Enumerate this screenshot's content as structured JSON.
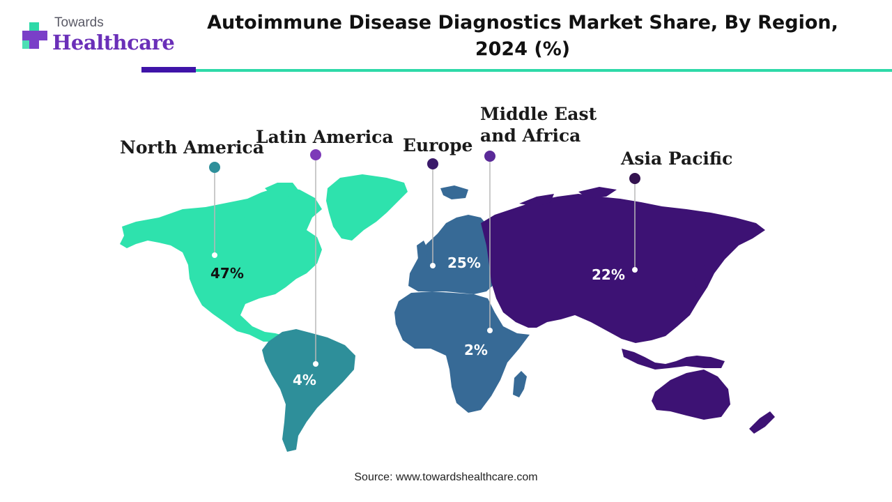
{
  "brand": {
    "line1": "Towards",
    "line2": "Healthcare"
  },
  "title": "Autoimmune Disease Diagnostics Market Share, By Region, 2024 (%)",
  "source": "Source: www.towardshealthcare.com",
  "colors": {
    "north_america": "#2ee2ad",
    "latin_america": "#2e8f9a",
    "europe_africa": "#376a96",
    "asia_pacific": "#3d1274",
    "marker_na": "#2e8f9a",
    "marker_la": "#7d3ab8",
    "marker_eu": "#3a1a6a",
    "marker_mea": "#5a2a98",
    "marker_ap": "#33124f"
  },
  "regions": [
    {
      "id": "north-america",
      "label": "North America",
      "value": "47%"
    },
    {
      "id": "latin-america",
      "label": "Latin America",
      "value": "4%"
    },
    {
      "id": "europe",
      "label": "Europe",
      "value": "25%"
    },
    {
      "id": "middle-east-africa",
      "label": "Middle East\nand Africa",
      "value": "2%"
    },
    {
      "id": "asia-pacific",
      "label": "Asia Pacific",
      "value": "22%"
    }
  ]
}
